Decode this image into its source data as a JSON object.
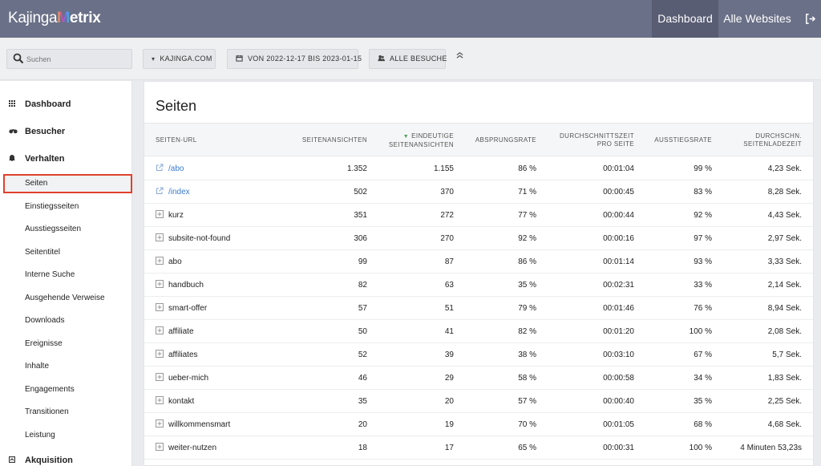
{
  "app": {
    "logo_prefix": "Kajinga",
    "logo_m": "M",
    "logo_suffix": "etrix"
  },
  "topnav": {
    "dashboard": "Dashboard",
    "all_sites": "Alle Websites"
  },
  "filters": {
    "search_placeholder": "Suchen",
    "site": "KAJINGA.COM",
    "date": "VON 2022-12-17 BIS 2023-01-15",
    "segment": "ALLE BESUCHE"
  },
  "sidebar": {
    "categories": {
      "dashboard": "Dashboard",
      "visitors": "Besucher",
      "behavior": "Verhalten",
      "acquisition": "Akquisition"
    },
    "items": [
      "Seiten",
      "Einstiegsseiten",
      "Ausstiegsseiten",
      "Seitentitel",
      "Interne Suche",
      "Ausgehende Verweise",
      "Downloads",
      "Ereignisse",
      "Inhalte",
      "Engagements",
      "Transitionen",
      "Leistung"
    ]
  },
  "main": {
    "title": "Seiten",
    "columns": {
      "url": "SEITEN-URL",
      "views": "SEITENANSICHTEN",
      "unique_1": "EINDEUTIGE",
      "unique_2": "SEITENANSICHTEN",
      "bounce": "ABSPRUNGSRATE",
      "time_1": "DURCHSCHNITTSZEIT",
      "time_2": "PRO SEITE",
      "exit": "AUSSTIEGSRATE",
      "load_1": "DURCHSCHN.",
      "load_2": "SEITENLADEZEIT"
    },
    "rows": [
      {
        "url": "/abo",
        "type": "link",
        "views": "1.352",
        "unique": "1.155",
        "bounce": "86 %",
        "time": "00:01:04",
        "exit": "99 %",
        "load": "4,23 Sek."
      },
      {
        "url": "/index",
        "type": "link",
        "views": "502",
        "unique": "370",
        "bounce": "71 %",
        "time": "00:00:45",
        "exit": "83 %",
        "load": "8,28 Sek."
      },
      {
        "url": "kurz",
        "type": "folder",
        "views": "351",
        "unique": "272",
        "bounce": "77 %",
        "time": "00:00:44",
        "exit": "92 %",
        "load": "4,43 Sek."
      },
      {
        "url": "subsite-not-found",
        "type": "folder",
        "views": "306",
        "unique": "270",
        "bounce": "92 %",
        "time": "00:00:16",
        "exit": "97 %",
        "load": "2,97 Sek."
      },
      {
        "url": "abo",
        "type": "folder",
        "views": "99",
        "unique": "87",
        "bounce": "86 %",
        "time": "00:01:14",
        "exit": "93 %",
        "load": "3,33 Sek."
      },
      {
        "url": "handbuch",
        "type": "folder",
        "views": "82",
        "unique": "63",
        "bounce": "35 %",
        "time": "00:02:31",
        "exit": "33 %",
        "load": "2,14 Sek."
      },
      {
        "url": "smart-offer",
        "type": "folder",
        "views": "57",
        "unique": "51",
        "bounce": "79 %",
        "time": "00:01:46",
        "exit": "76 %",
        "load": "8,94 Sek."
      },
      {
        "url": "affiliate",
        "type": "folder",
        "views": "50",
        "unique": "41",
        "bounce": "82 %",
        "time": "00:01:20",
        "exit": "100 %",
        "load": "2,08 Sek."
      },
      {
        "url": "affiliates",
        "type": "folder",
        "views": "52",
        "unique": "39",
        "bounce": "38 %",
        "time": "00:03:10",
        "exit": "67 %",
        "load": "5,7 Sek."
      },
      {
        "url": "ueber-mich",
        "type": "folder",
        "views": "46",
        "unique": "29",
        "bounce": "58 %",
        "time": "00:00:58",
        "exit": "34 %",
        "load": "1,83 Sek."
      },
      {
        "url": "kontakt",
        "type": "folder",
        "views": "35",
        "unique": "20",
        "bounce": "57 %",
        "time": "00:00:40",
        "exit": "35 %",
        "load": "2,25 Sek."
      },
      {
        "url": "willkommensmart",
        "type": "folder",
        "views": "20",
        "unique": "19",
        "bounce": "70 %",
        "time": "00:01:05",
        "exit": "68 %",
        "load": "4,68 Sek."
      },
      {
        "url": "weiter-nutzen",
        "type": "folder",
        "views": "18",
        "unique": "17",
        "bounce": "65 %",
        "time": "00:00:31",
        "exit": "100 %",
        "load": "4 Minuten 53,23s"
      }
    ]
  },
  "colors": {
    "topbar": "#6a7087",
    "active_nav": "#585d73",
    "link": "#3a7bd5",
    "sort_arrow": "#4aa05a",
    "highlight": "#e0412d"
  }
}
